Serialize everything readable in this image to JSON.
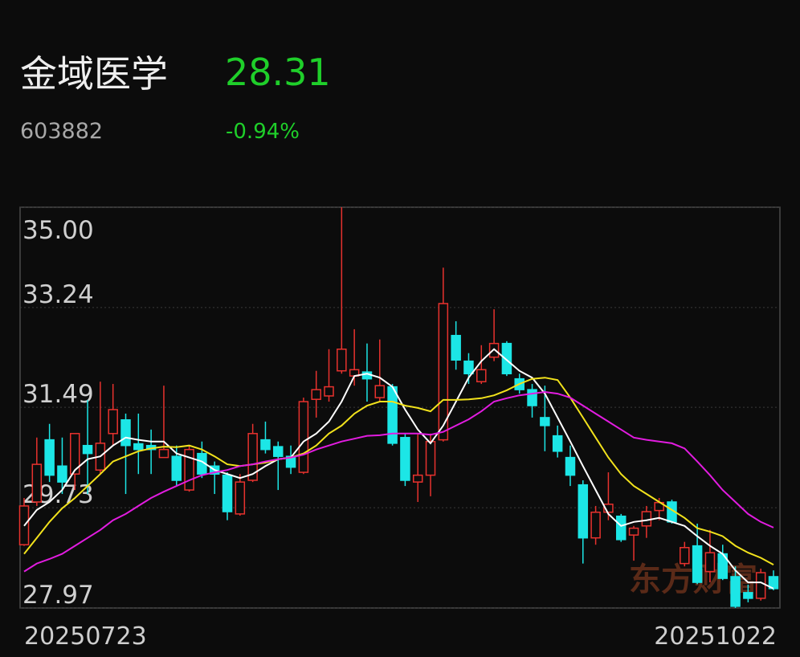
{
  "header": {
    "name": "金域医学",
    "price": "28.31",
    "code": "603882",
    "change": "-0.94%"
  },
  "watermark": "东方财富",
  "chart_data": {
    "type": "candlestick",
    "categories": [
      "20250723",
      null,
      null,
      null,
      null,
      null,
      null,
      null,
      null,
      null,
      null,
      null,
      null,
      null,
      null,
      null,
      null,
      null,
      null,
      null,
      null,
      null,
      null,
      null,
      null,
      null,
      null,
      null,
      null,
      null,
      null,
      null,
      null,
      null,
      null,
      null,
      null,
      null,
      null,
      null,
      null,
      null,
      null,
      null,
      null,
      null,
      null,
      null,
      null,
      null,
      null,
      null,
      null,
      null,
      null,
      null,
      null,
      null,
      null,
      "20251022"
    ],
    "open": [
      29.08,
      29.83,
      30.92,
      30.46,
      30.32,
      30.82,
      30.39,
      31.03,
      31.27,
      30.85,
      30.82,
      30.61,
      30.63,
      30.04,
      30.68,
      30.46,
      30.3,
      29.62,
      30.21,
      30.92,
      30.8,
      30.63,
      30.35,
      31.63,
      31.69,
      32.13,
      32.04,
      32.11,
      31.66,
      31.85,
      30.96,
      30.18,
      30.3,
      30.92,
      32.75,
      32.3,
      31.94,
      32.37,
      32.61,
      31.99,
      31.8,
      31.31,
      30.99,
      30.61,
      30.13,
      29.2,
      29.65,
      29.58,
      29.25,
      29.41,
      29.68,
      29.83,
      28.75,
      29.06,
      28.61,
      28.92,
      28.52,
      28.24,
      28.14,
      28.52
    ],
    "high": [
      29.9,
      30.96,
      31.2,
      30.96,
      31.03,
      31.62,
      31.94,
      31.9,
      31.38,
      31.38,
      31.1,
      31.87,
      30.82,
      30.82,
      30.89,
      30.54,
      30.35,
      30.32,
      31.2,
      31.24,
      30.89,
      30.82,
      31.66,
      32.13,
      32.51,
      35.0,
      32.86,
      32.61,
      32.68,
      31.9,
      31.03,
      31.03,
      31.03,
      33.94,
      33.0,
      32.44,
      32.58,
      33.21,
      32.65,
      32.08,
      31.9,
      31.87,
      31.17,
      30.82,
      30.21,
      29.76,
      30.35,
      29.62,
      29.41,
      29.76,
      29.9,
      29.87,
      29.13,
      29.45,
      29.34,
      29.08,
      28.7,
      28.38,
      28.66,
      28.63
    ],
    "low": [
      29.06,
      29.76,
      30.18,
      29.97,
      30.04,
      29.97,
      30.32,
      30.82,
      29.97,
      30.32,
      30.32,
      30.61,
      30.11,
      30.01,
      30.25,
      29.97,
      29.51,
      29.59,
      30.18,
      30.68,
      30.04,
      30.32,
      30.32,
      31.31,
      31.59,
      32.08,
      31.87,
      31.59,
      31.59,
      30.82,
      30.11,
      29.83,
      29.93,
      30.89,
      32.15,
      31.9,
      31.9,
      32.3,
      32.04,
      31.73,
      31.31,
      30.72,
      30.61,
      30.11,
      28.75,
      29.08,
      29.51,
      29.13,
      28.8,
      29.2,
      29.51,
      29.45,
      28.7,
      28.39,
      28.42,
      28.46,
      27.97,
      28.07,
      28.1,
      28.28
    ],
    "close": [
      29.76,
      30.49,
      30.3,
      30.18,
      31.03,
      30.68,
      30.86,
      31.45,
      30.82,
      30.75,
      30.75,
      30.75,
      30.21,
      30.75,
      30.32,
      30.32,
      29.66,
      30.18,
      31.03,
      30.75,
      30.63,
      30.44,
      31.59,
      31.8,
      31.85,
      32.51,
      32.15,
      31.99,
      31.87,
      30.86,
      30.21,
      30.3,
      30.89,
      33.31,
      32.32,
      32.08,
      32.15,
      32.61,
      32.08,
      31.8,
      31.52,
      31.17,
      30.72,
      30.3,
      29.2,
      29.65,
      29.79,
      29.17,
      29.37,
      29.66,
      29.82,
      29.48,
      29.03,
      28.42,
      28.94,
      28.49,
      28.0,
      28.14,
      28.59,
      28.31
    ],
    "up_color": "#e8322e",
    "down_color": "#1ce6e6",
    "series": [
      {
        "color": "#ffffff",
        "values": [
          29.41,
          29.69,
          29.83,
          30.04,
          30.39,
          30.58,
          30.63,
          30.82,
          30.96,
          30.92,
          30.89,
          30.89,
          30.68,
          30.61,
          30.54,
          30.39,
          30.32,
          30.25,
          30.32,
          30.46,
          30.58,
          30.61,
          30.89,
          31.03,
          31.24,
          31.59,
          32.04,
          32.08,
          32.01,
          31.85,
          31.45,
          31.1,
          30.86,
          31.17,
          31.59,
          32.01,
          32.3,
          32.51,
          32.32,
          32.13,
          32.01,
          31.73,
          31.31,
          30.89,
          30.46,
          30.04,
          29.62,
          29.41,
          29.48,
          29.51,
          29.55,
          29.48,
          29.41,
          29.23,
          29.06,
          28.92,
          28.63,
          28.42,
          28.42,
          28.31
        ]
      },
      {
        "color": "#f2e21c",
        "values": [
          28.92,
          29.2,
          29.48,
          29.72,
          29.9,
          30.11,
          30.32,
          30.54,
          30.63,
          30.72,
          30.77,
          30.8,
          30.79,
          30.82,
          30.75,
          30.63,
          30.49,
          30.46,
          30.49,
          30.52,
          30.58,
          30.61,
          30.68,
          30.82,
          31.03,
          31.17,
          31.38,
          31.52,
          31.59,
          31.59,
          31.52,
          31.48,
          31.42,
          31.62,
          31.62,
          31.63,
          31.65,
          31.7,
          31.79,
          31.9,
          31.99,
          32.01,
          31.97,
          31.66,
          31.31,
          30.96,
          30.61,
          30.32,
          30.11,
          29.97,
          29.83,
          29.69,
          29.55,
          29.37,
          29.31,
          29.23,
          29.06,
          28.94,
          28.85,
          28.73
        ]
      },
      {
        "color": "#e21ce0",
        "values": [
          28.61,
          28.75,
          28.83,
          28.92,
          29.06,
          29.2,
          29.34,
          29.51,
          29.62,
          29.76,
          29.9,
          30.01,
          30.11,
          30.21,
          30.3,
          30.35,
          30.39,
          30.46,
          30.49,
          30.54,
          30.58,
          30.61,
          30.66,
          30.75,
          30.82,
          30.89,
          30.94,
          30.99,
          31.0,
          31.03,
          31.03,
          31.03,
          31.01,
          31.06,
          31.17,
          31.28,
          31.42,
          31.59,
          31.65,
          31.7,
          31.73,
          31.76,
          31.73,
          31.66,
          31.52,
          31.38,
          31.24,
          31.1,
          30.96,
          30.92,
          30.89,
          30.86,
          30.77,
          30.54,
          30.3,
          30.04,
          29.83,
          29.62,
          29.48,
          29.38
        ]
      }
    ],
    "ylim": [
      27.97,
      35.0
    ],
    "yticks": [
      {
        "value": 35.0,
        "label": "35.00"
      },
      33.24,
      31.49,
      29.73,
      27.97
    ],
    "grid": true
  }
}
